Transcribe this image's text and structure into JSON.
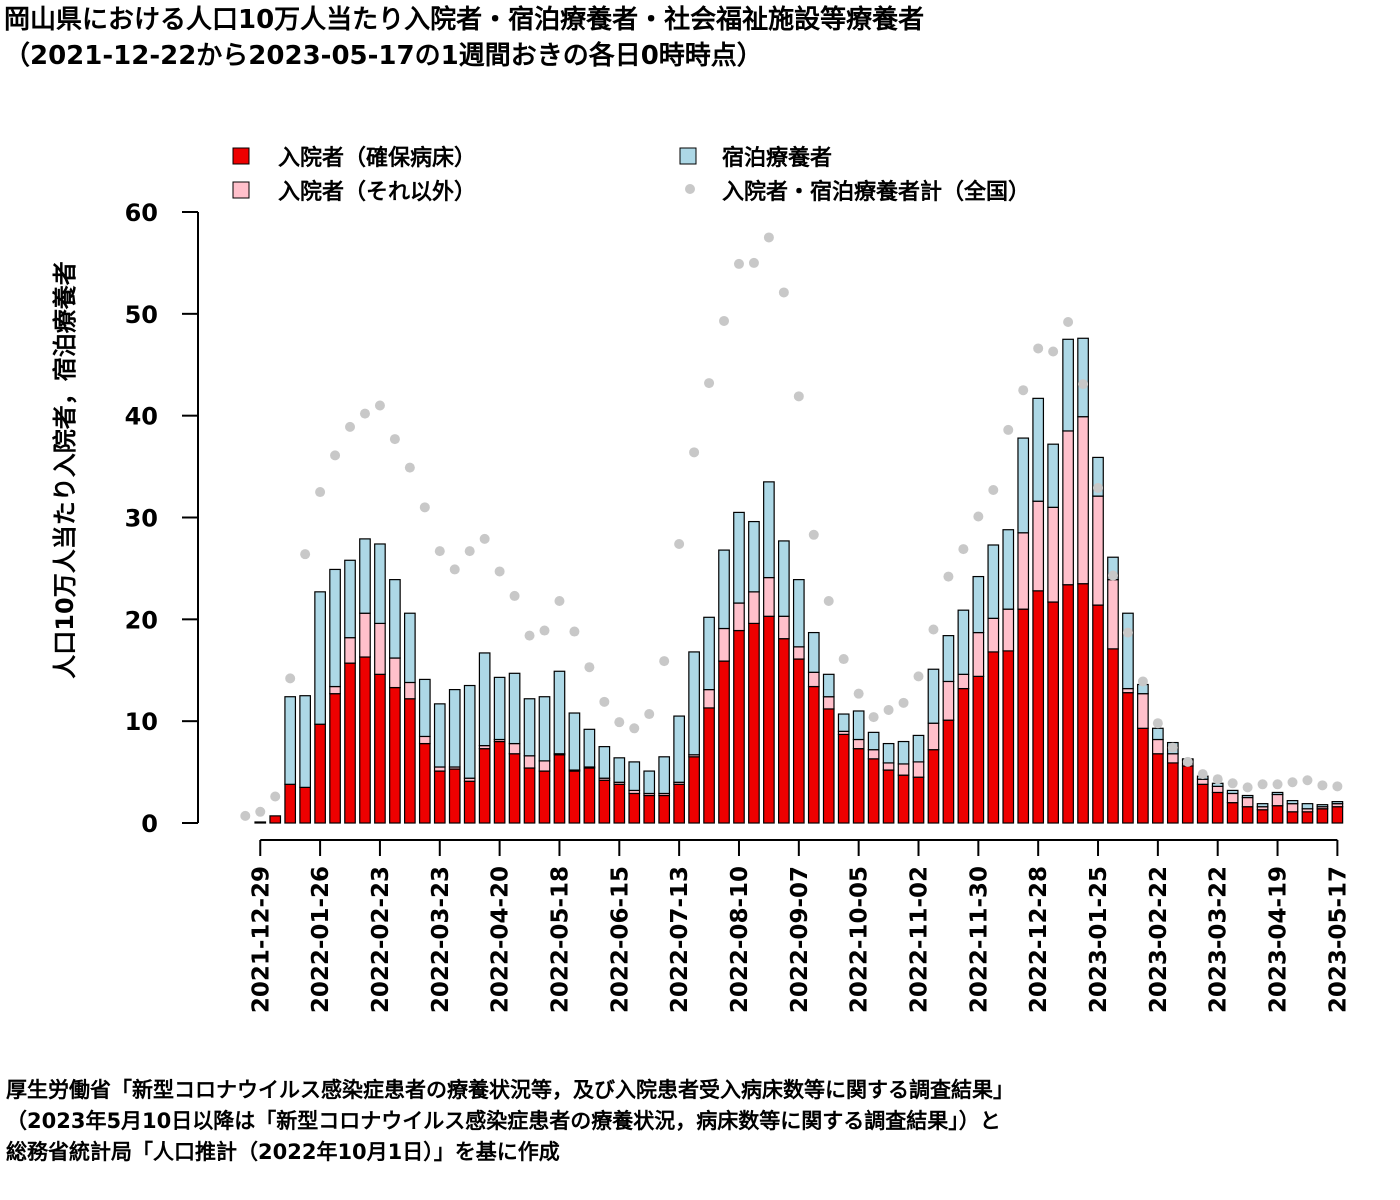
{
  "title": {
    "line1": "岡山県における人口10万人当たり入院者・宿泊療養者・社会福祉施設等療養者",
    "line2": "（2021-12-22から2023-05-17の1週間おきの各日0時時点）"
  },
  "source": {
    "line1": "厚生労働省「新型コロナウイルス感染症患者の療養状況等，及び入院患者受入病床数等に関する調査結果」",
    "line2": "（2023年5月10日以降は「新型コロナウイルス感染症患者の療養状況，病床数等に関する調査結果」）と",
    "line3": "総務省統計局「人口推計（2022年10月1日）」を基に作成"
  },
  "legend": {
    "hosp_secured": "入院者（確保病床）",
    "hosp_other": "入院者（それ以外）",
    "lodging": "宿泊療養者",
    "national": "入院者・宿泊療養者計（全国）"
  },
  "colors": {
    "hosp_secured": "#ee0000",
    "hosp_other": "#ffc0cb",
    "lodging": "#add8e6",
    "national": "#c8c8c8"
  },
  "chart_data": {
    "type": "bar",
    "stacked": true,
    "ylabel": "人口10万人当たり入院者，宿泊療養者",
    "ylim": [
      0,
      60
    ],
    "yticks": [
      0,
      10,
      20,
      30,
      40,
      50,
      60
    ],
    "x": [
      "2021-12-22",
      "2021-12-29",
      "2022-01-05",
      "2022-01-12",
      "2022-01-19",
      "2022-01-26",
      "2022-02-02",
      "2022-02-09",
      "2022-02-16",
      "2022-02-23",
      "2022-03-02",
      "2022-03-09",
      "2022-03-16",
      "2022-03-23",
      "2022-03-30",
      "2022-04-06",
      "2022-04-13",
      "2022-04-20",
      "2022-04-27",
      "2022-05-04",
      "2022-05-11",
      "2022-05-18",
      "2022-05-25",
      "2022-06-01",
      "2022-06-08",
      "2022-06-15",
      "2022-06-22",
      "2022-06-29",
      "2022-07-06",
      "2022-07-13",
      "2022-07-20",
      "2022-07-27",
      "2022-08-03",
      "2022-08-10",
      "2022-08-17",
      "2022-08-24",
      "2022-08-31",
      "2022-09-07",
      "2022-09-14",
      "2022-09-21",
      "2022-09-28",
      "2022-10-05",
      "2022-10-12",
      "2022-10-19",
      "2022-10-26",
      "2022-11-02",
      "2022-11-09",
      "2022-11-16",
      "2022-11-23",
      "2022-11-30",
      "2022-12-07",
      "2022-12-14",
      "2022-12-21",
      "2022-12-28",
      "2023-01-04",
      "2023-01-11",
      "2023-01-18",
      "2023-01-25",
      "2023-02-01",
      "2023-02-08",
      "2023-02-15",
      "2023-02-22",
      "2023-03-01",
      "2023-03-08",
      "2023-03-15",
      "2023-03-22",
      "2023-03-29",
      "2023-04-05",
      "2023-04-12",
      "2023-04-19",
      "2023-04-26",
      "2023-05-03",
      "2023-05-10",
      "2023-05-17"
    ],
    "xtick_labels": [
      "2021-12-29",
      "2022-01-26",
      "2022-02-23",
      "2022-03-23",
      "2022-04-20",
      "2022-05-18",
      "2022-06-15",
      "2022-07-13",
      "2022-08-10",
      "2022-09-07",
      "2022-10-05",
      "2022-11-02",
      "2022-11-30",
      "2022-12-28",
      "2023-01-25",
      "2023-02-22",
      "2023-03-22",
      "2023-04-19",
      "2023-05-17"
    ],
    "series": [
      {
        "name": "入院者（確保病床）",
        "values": [
          0,
          0.1,
          0.7,
          3.8,
          3.5,
          9.7,
          12.7,
          15.7,
          16.3,
          14.6,
          13.3,
          12.2,
          7.8,
          5.1,
          5.3,
          4.1,
          7.3,
          8.0,
          6.8,
          5.4,
          5.1,
          6.7,
          5.1,
          5.4,
          4.2,
          3.8,
          2.9,
          2.7,
          2.7,
          3.8,
          6.5,
          11.3,
          15.9,
          18.9,
          19.6,
          20.3,
          18.1,
          16.1,
          13.4,
          11.2,
          8.7,
          7.3,
          6.3,
          5.2,
          4.7,
          4.5,
          7.2,
          10.1,
          13.2,
          14.4,
          16.8,
          16.9,
          21.0,
          22.8,
          21.7,
          23.4,
          23.5,
          21.4,
          17.1,
          12.8,
          9.3,
          6.8,
          5.9,
          5.6,
          3.8,
          3.0,
          2.0,
          1.6,
          1.3,
          1.7,
          1.1,
          1.1,
          1.4,
          1.6
        ]
      },
      {
        "name": "入院者（それ以外）",
        "values": [
          0,
          0,
          0,
          0,
          0,
          0,
          0.7,
          2.5,
          4.3,
          5.0,
          2.9,
          1.6,
          0.7,
          0.4,
          0.2,
          0.3,
          0.3,
          0.2,
          1.0,
          1.2,
          1.0,
          0.1,
          0.1,
          0.1,
          0.2,
          0.2,
          0.3,
          0.2,
          0.2,
          0.2,
          0.2,
          1.8,
          3.2,
          2.7,
          3.1,
          3.8,
          2.2,
          1.2,
          1.4,
          1.2,
          0.3,
          0.9,
          0.9,
          0.7,
          1.1,
          1.5,
          2.6,
          3.8,
          1.4,
          4.3,
          3.3,
          4.1,
          7.5,
          8.8,
          9.3,
          15.1,
          16.4,
          10.7,
          6.8,
          0.4,
          3.4,
          1.4,
          0.9,
          0.6,
          0.5,
          0.6,
          0.9,
          0.9,
          0.3,
          1.1,
          0.8,
          0.3,
          0.2,
          0.3
        ]
      },
      {
        "name": "宿泊療養者",
        "values": [
          0,
          0,
          0,
          8.6,
          9.0,
          13.0,
          11.5,
          7.6,
          7.3,
          7.8,
          7.7,
          6.8,
          5.6,
          6.2,
          7.6,
          9.1,
          9.1,
          6.1,
          6.9,
          5.6,
          6.3,
          8.1,
          5.6,
          3.7,
          3.1,
          2.4,
          2.8,
          2.2,
          3.6,
          6.5,
          10.1,
          7.1,
          7.7,
          8.9,
          6.9,
          9.4,
          7.4,
          6.6,
          3.9,
          2.2,
          1.7,
          2.8,
          1.7,
          1.9,
          2.2,
          2.6,
          5.3,
          4.5,
          6.3,
          5.5,
          7.2,
          7.8,
          9.3,
          10.1,
          6.2,
          9.0,
          7.7,
          3.8,
          2.2,
          7.4,
          0.9,
          1.1,
          1.1,
          0.1,
          0.3,
          0.3,
          0.3,
          0.2,
          0.3,
          0.2,
          0.3,
          0.5,
          0.2,
          0.2
        ]
      },
      {
        "name": "入院者・宿泊療養者計（全国）",
        "type": "scatter",
        "values": [
          0.7,
          1.1,
          2.6,
          14.2,
          26.4,
          32.5,
          36.1,
          38.9,
          40.2,
          41.0,
          37.7,
          34.9,
          31.0,
          26.7,
          24.9,
          26.7,
          27.9,
          24.7,
          22.3,
          18.4,
          18.9,
          21.8,
          18.8,
          15.3,
          11.9,
          9.9,
          9.3,
          10.7,
          15.9,
          27.4,
          36.4,
          43.2,
          49.3,
          54.9,
          55.0,
          57.5,
          52.1,
          41.9,
          28.3,
          21.8,
          16.1,
          12.7,
          10.4,
          11.1,
          11.8,
          14.4,
          19.0,
          24.2,
          26.9,
          30.1,
          32.7,
          38.6,
          42.5,
          46.6,
          46.3,
          49.2,
          43.1,
          32.9,
          24.3,
          18.7,
          13.9,
          9.8,
          7.4,
          6.0,
          4.8,
          4.3,
          3.9,
          3.5,
          3.8,
          3.8,
          4.0,
          4.2,
          3.7,
          3.6
        ]
      }
    ],
    "legend_position": "top",
    "grid": false
  }
}
